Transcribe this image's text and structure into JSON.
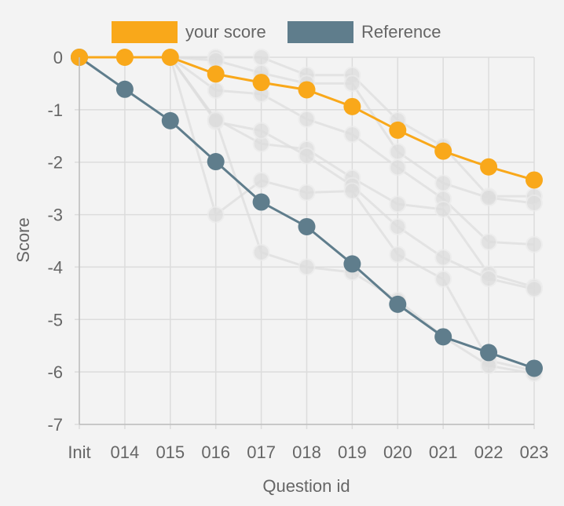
{
  "chart_data": {
    "type": "line",
    "xlabel": "Question id",
    "ylabel": "Score",
    "categories": [
      "Init",
      "014",
      "015",
      "016",
      "017",
      "018",
      "019",
      "020",
      "021",
      "022",
      "023"
    ],
    "ylim": [
      -7,
      0
    ],
    "yticks": [
      0,
      -1,
      -2,
      -3,
      -4,
      -5,
      -6,
      -7
    ],
    "grid": true,
    "legend_position": "top",
    "series": [
      {
        "name": "your score",
        "color": "#f9a81a",
        "values": [
          0,
          0,
          0,
          -0.32,
          -0.48,
          -0.62,
          -0.94,
          -1.39,
          -1.79,
          -2.09,
          -2.34
        ]
      },
      {
        "name": "Reference",
        "color": "#5f7d8c",
        "values": [
          0,
          -0.61,
          -1.21,
          -1.99,
          -2.76,
          -3.23,
          -3.94,
          -4.71,
          -5.33,
          -5.63,
          -5.93
        ]
      }
    ],
    "background_series_color": "#dddddd",
    "background_series": [
      [
        0,
        0,
        0,
        0,
        0,
        -0.34,
        -0.34,
        -1.2,
        -1.7,
        -2.65,
        -2.65
      ],
      [
        0,
        0,
        0,
        -0.06,
        -0.3,
        -0.5,
        -0.5,
        -1.8,
        -2.4,
        -2.68,
        -2.78
      ],
      [
        0,
        0,
        0,
        -0.63,
        -0.7,
        -1.18,
        -1.47,
        -2.1,
        -2.7,
        -3.52,
        -3.57
      ],
      [
        0,
        0,
        0,
        -1.18,
        -1.65,
        -1.75,
        -2.3,
        -2.8,
        -2.9,
        -4.13,
        -4.38
      ],
      [
        0,
        0,
        0,
        -1.23,
        -1.4,
        -1.88,
        -2.45,
        -3.23,
        -3.82,
        -4.22,
        -4.42
      ],
      [
        0,
        0,
        0,
        -3.0,
        -2.35,
        -2.58,
        -2.55,
        -3.76,
        -4.23,
        -5.78,
        -5.98
      ],
      [
        0,
        0,
        0,
        -1.2,
        -3.72,
        -4.0,
        -4.1,
        -4.63,
        -5.33,
        -5.88,
        -6.03
      ]
    ]
  }
}
